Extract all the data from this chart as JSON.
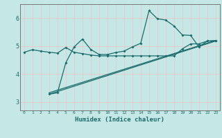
{
  "xlabel": "Humidex (Indice chaleur)",
  "background_color": "#c5e8e6",
  "grid_color": "#e8c8c8",
  "line_color": "#1a6b6b",
  "xlim": [
    -0.5,
    23.5
  ],
  "ylim": [
    2.7,
    6.5
  ],
  "xticks": [
    0,
    1,
    2,
    3,
    4,
    5,
    6,
    7,
    8,
    9,
    10,
    11,
    12,
    13,
    14,
    15,
    16,
    17,
    18,
    19,
    20,
    21,
    22,
    23
  ],
  "yticks": [
    3,
    4,
    5,
    6
  ],
  "series1_x": [
    0,
    1,
    2,
    3,
    4,
    5,
    6,
    7,
    8,
    9,
    10,
    11,
    12,
    13,
    14,
    15,
    16,
    17,
    18,
    19,
    20,
    21,
    22,
    23
  ],
  "series1_y": [
    4.78,
    4.87,
    4.82,
    4.78,
    4.75,
    4.95,
    4.78,
    4.73,
    4.68,
    4.65,
    4.65,
    4.65,
    4.65,
    4.65,
    4.65,
    4.65,
    4.65,
    4.65,
    4.65,
    4.9,
    5.08,
    5.08,
    5.18,
    5.18
  ],
  "series2_x": [
    3,
    4,
    5,
    6,
    7,
    8,
    9,
    10,
    11,
    12,
    13,
    14,
    15,
    16,
    17,
    18,
    19,
    20,
    21,
    22,
    23
  ],
  "series2_y": [
    3.28,
    3.33,
    4.4,
    4.97,
    5.25,
    4.88,
    4.7,
    4.7,
    4.77,
    4.82,
    4.97,
    5.1,
    6.27,
    5.98,
    5.93,
    5.72,
    5.4,
    5.38,
    4.97,
    5.18,
    5.2
  ],
  "series3_x": [
    3,
    23
  ],
  "series3_y": [
    3.28,
    5.18
  ],
  "series4_x": [
    3,
    23
  ],
  "series4_y": [
    3.33,
    5.2
  ]
}
